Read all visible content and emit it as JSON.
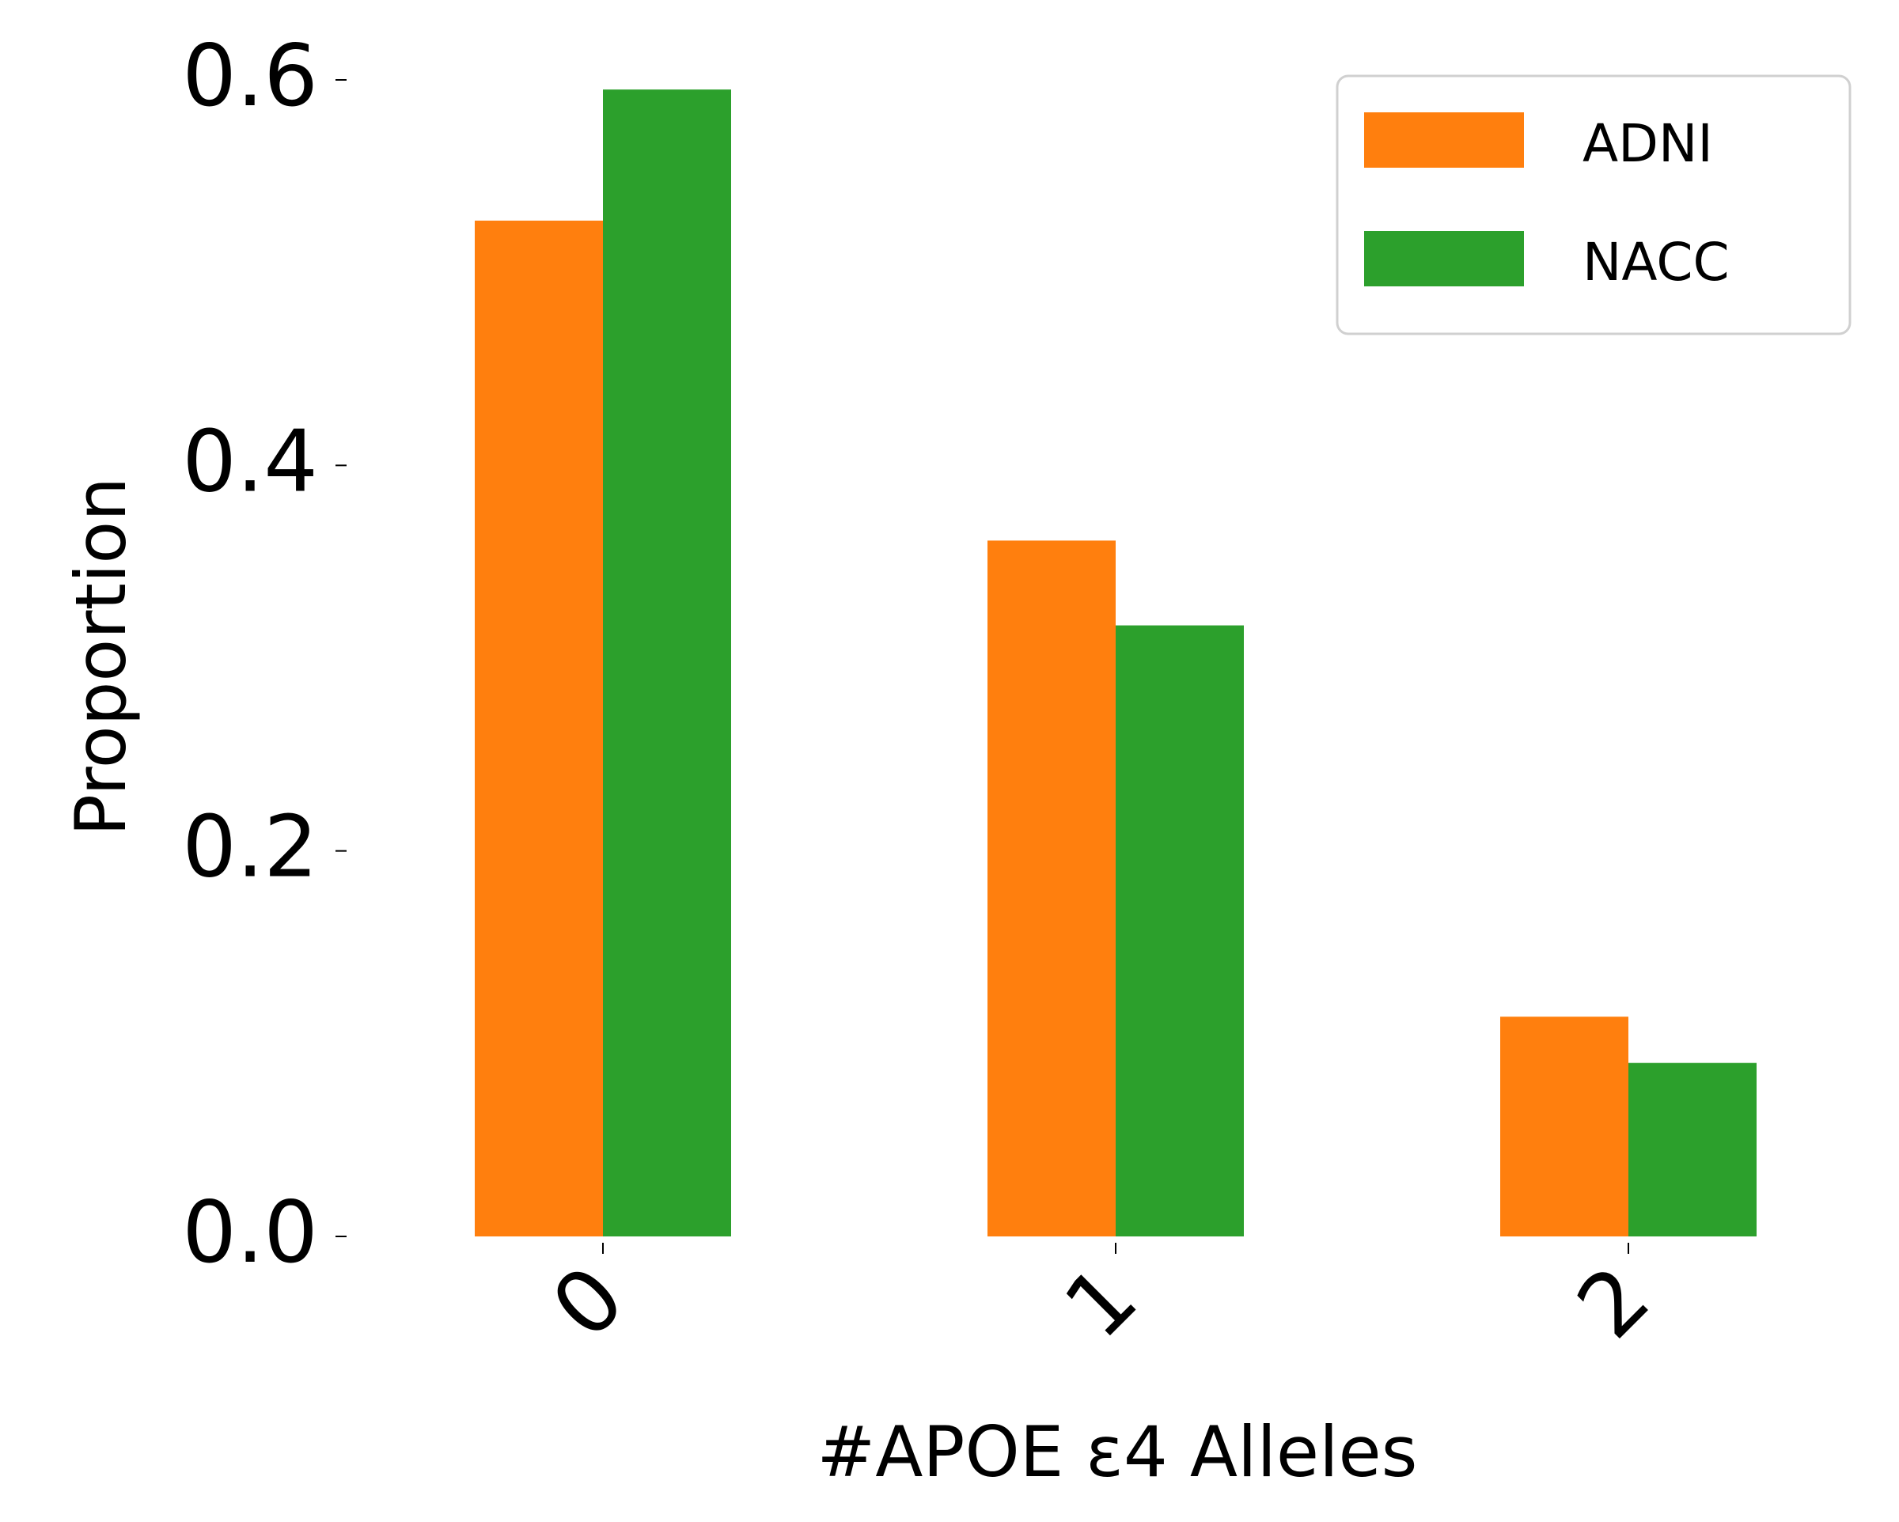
{
  "chart_data": {
    "type": "bar",
    "title": "",
    "xlabel": "#APOE ε4 Alleles",
    "ylabel": "Proportion",
    "categories": [
      "0",
      "1",
      "2"
    ],
    "series": [
      {
        "name": "ADNI",
        "color": "#ff7f0e",
        "values": [
          0.527,
          0.361,
          0.114
        ]
      },
      {
        "name": "NACC",
        "color": "#2ca02c",
        "values": [
          0.595,
          0.317,
          0.09
        ]
      }
    ],
    "ylim": [
      0,
      0.6
    ],
    "yticks": [
      0.0,
      0.2,
      0.4,
      0.6
    ],
    "ytick_labels": [
      "0.0",
      "0.2",
      "0.4",
      "0.6"
    ],
    "xtick_rotation_deg": -45,
    "grid": false,
    "legend": {
      "position": "top-right",
      "entries": [
        "ADNI",
        "NACC"
      ]
    },
    "legend_border_color": "#d0d0d0"
  }
}
